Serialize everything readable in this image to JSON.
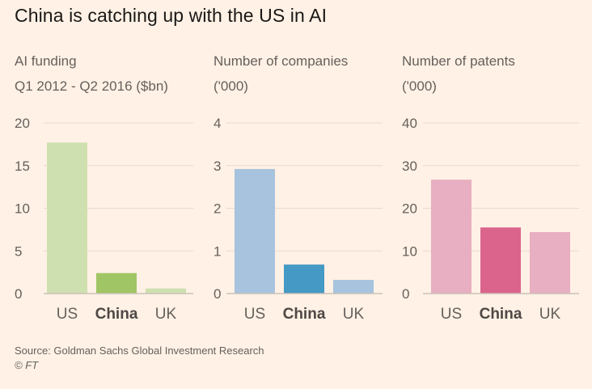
{
  "title": "China is catching up with the US in AI",
  "source": "Source: Goldman Sachs Global Investment Research",
  "copyright": "© FT",
  "chart_data": [
    {
      "type": "bar",
      "title": "AI funding",
      "subtitle": "Q1 2012 - Q2 2016 ($bn)",
      "categories": [
        "US",
        "China",
        "UK"
      ],
      "highlight": "China",
      "values": [
        17.7,
        2.4,
        0.6
      ],
      "ylim": [
        0,
        20
      ],
      "yticks": [
        0,
        5,
        10,
        15,
        20
      ],
      "grid": true,
      "colors": {
        "base": "#cfe0b0",
        "highlight": "#a0c564"
      }
    },
    {
      "type": "bar",
      "title": "Number of companies",
      "subtitle": "('000)",
      "categories": [
        "US",
        "China",
        "UK"
      ],
      "highlight": "China",
      "values": [
        2.92,
        0.68,
        0.32
      ],
      "ylim": [
        0,
        4
      ],
      "yticks": [
        0,
        1,
        2,
        3,
        4
      ],
      "grid": true,
      "colors": {
        "base": "#a7c3de",
        "highlight": "#4599c5"
      }
    },
    {
      "type": "bar",
      "title": "Number of patents",
      "subtitle": "('000)",
      "categories": [
        "US",
        "China",
        "UK"
      ],
      "highlight": "China",
      "values": [
        26.7,
        15.5,
        14.4
      ],
      "ylim": [
        0,
        40
      ],
      "yticks": [
        0,
        10,
        20,
        30,
        40
      ],
      "grid": true,
      "colors": {
        "base": "#e8aec1",
        "highlight": "#db648c"
      }
    }
  ]
}
